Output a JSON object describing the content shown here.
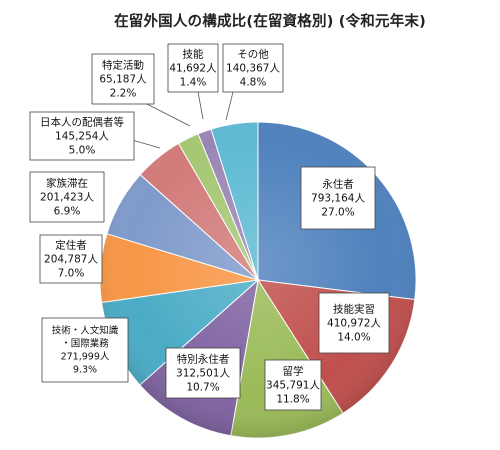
{
  "title": "在留外国人の構成比(在留資格別) (令和元年末)",
  "chart_data": {
    "type": "pie",
    "title": "在留外国人の構成比(在留資格別) (令和元年末)",
    "slices": [
      {
        "name": "永住者",
        "count": "793,164人",
        "pct": "27.0%",
        "value": 27.0,
        "color": "#4F81BD"
      },
      {
        "name": "技能実習",
        "count": "410,972人",
        "pct": "14.0%",
        "value": 14.0,
        "color": "#C0504D"
      },
      {
        "name": "留学",
        "count": "345,791人",
        "pct": "11.8%",
        "value": 11.8,
        "color": "#9BBB59"
      },
      {
        "name": "特別永住者",
        "count": "312,501人",
        "pct": "10.7%",
        "value": 10.7,
        "color": "#8064A2"
      },
      {
        "name": "技術・人文知識・国際業務",
        "count": "271,999人",
        "pct": "9.3%",
        "value": 9.3,
        "color": "#4BACC6"
      },
      {
        "name": "定住者",
        "count": "204,787人",
        "pct": "7.0%",
        "value": 7.0,
        "color": "#F79646"
      },
      {
        "name": "家族滞在",
        "count": "201,423人",
        "pct": "6.9%",
        "value": 6.9,
        "color": "#7F9ACB"
      },
      {
        "name": "日本人の配偶者等",
        "count": "145,254人",
        "pct": "5.0%",
        "value": 5.0,
        "color": "#D27B79"
      },
      {
        "name": "特定活動",
        "count": "65,187人",
        "pct": "2.2%",
        "value": 2.2,
        "color": "#A5C773"
      },
      {
        "name": "技能",
        "count": "41,692人",
        "pct": "1.4%",
        "value": 1.4,
        "color": "#9A86B5"
      },
      {
        "name": "その他",
        "count": "140,367人",
        "pct": "4.8%",
        "value": 4.8,
        "color": "#5DBAD2"
      }
    ]
  }
}
